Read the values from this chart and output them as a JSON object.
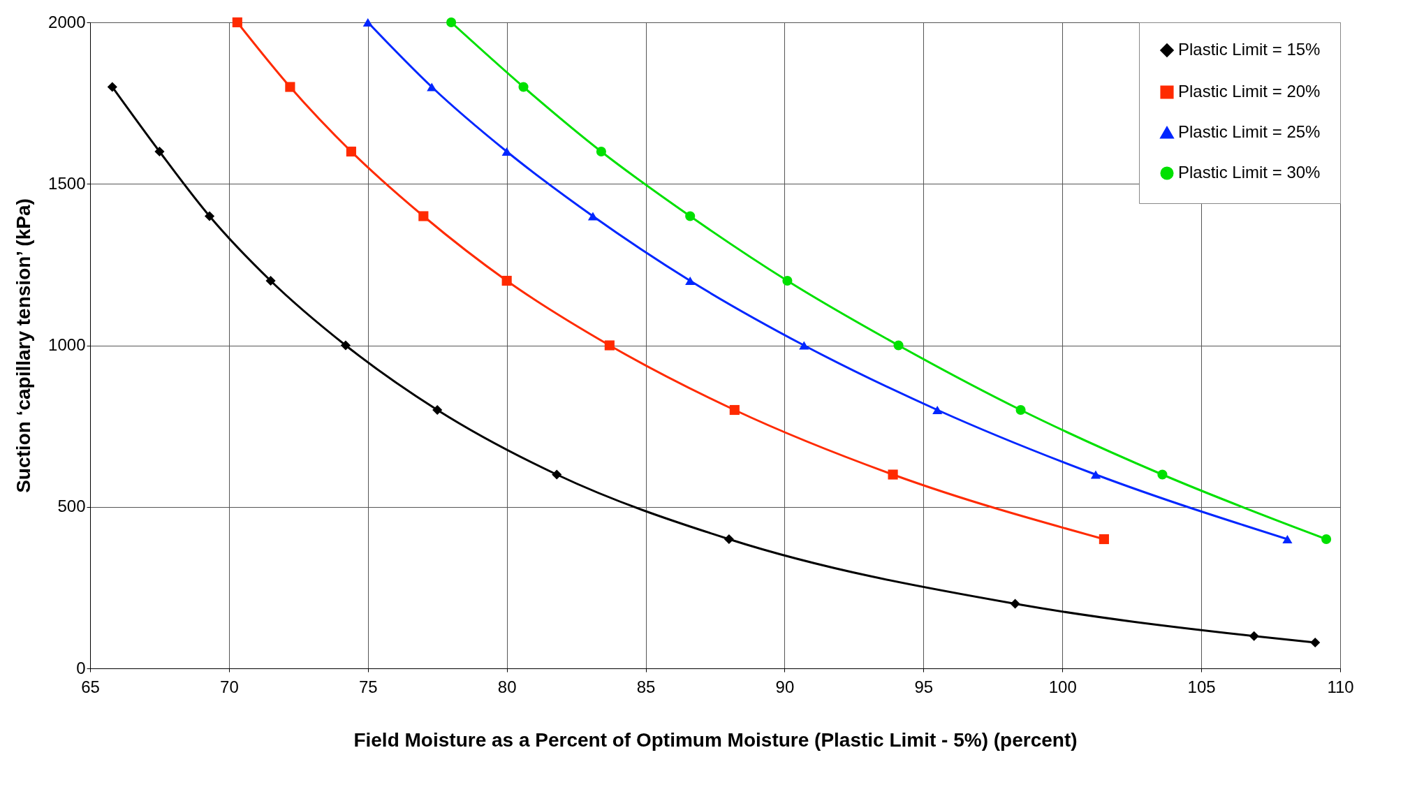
{
  "chart_data": {
    "type": "line",
    "xlabel": "Field Moisture as a Percent of Optimum Moisture (Plastic Limit - 5%) (percent)",
    "ylabel": "Suction ‘capillary tension’ (kPa)",
    "xlim": [
      65,
      110
    ],
    "xticks": [
      65,
      70,
      75,
      80,
      85,
      90,
      95,
      100,
      105,
      110
    ],
    "ylim": [
      0,
      2000
    ],
    "yticks": [
      0,
      500,
      1000,
      1500,
      2000
    ],
    "grid": true,
    "legend": "top right",
    "series": [
      {
        "name": "Plastic Limit = 15%",
        "color": "#000000",
        "marker": "diamond",
        "x": [
          65.8,
          67.5,
          69.3,
          71.5,
          74.2,
          77.5,
          81.8,
          88.0,
          98.3,
          106.9,
          109.1
        ],
        "values": [
          1800,
          1600,
          1400,
          1200,
          1000,
          800,
          600,
          400,
          200,
          100,
          80
        ]
      },
      {
        "name": "Plastic Limit = 20%",
        "color": "#ff2a00",
        "marker": "square",
        "x": [
          70.3,
          72.2,
          74.4,
          77.0,
          80.0,
          83.7,
          88.2,
          93.9,
          101.5
        ],
        "values": [
          2000,
          1800,
          1600,
          1400,
          1200,
          1000,
          800,
          600,
          400
        ]
      },
      {
        "name": "Plastic Limit = 25%",
        "color": "#0026ff",
        "marker": "triangle",
        "x": [
          75.0,
          77.3,
          80.0,
          83.1,
          86.6,
          90.7,
          95.5,
          101.2,
          108.1
        ],
        "values": [
          2000,
          1800,
          1600,
          1400,
          1200,
          1000,
          800,
          600,
          400
        ]
      },
      {
        "name": "Plastic Limit = 30%",
        "color": "#00e000",
        "marker": "circle",
        "x": [
          78.0,
          80.6,
          83.4,
          86.6,
          90.1,
          94.1,
          98.5,
          103.6,
          109.5
        ],
        "values": [
          2000,
          1800,
          1600,
          1400,
          1200,
          1000,
          800,
          600,
          400
        ]
      }
    ]
  }
}
